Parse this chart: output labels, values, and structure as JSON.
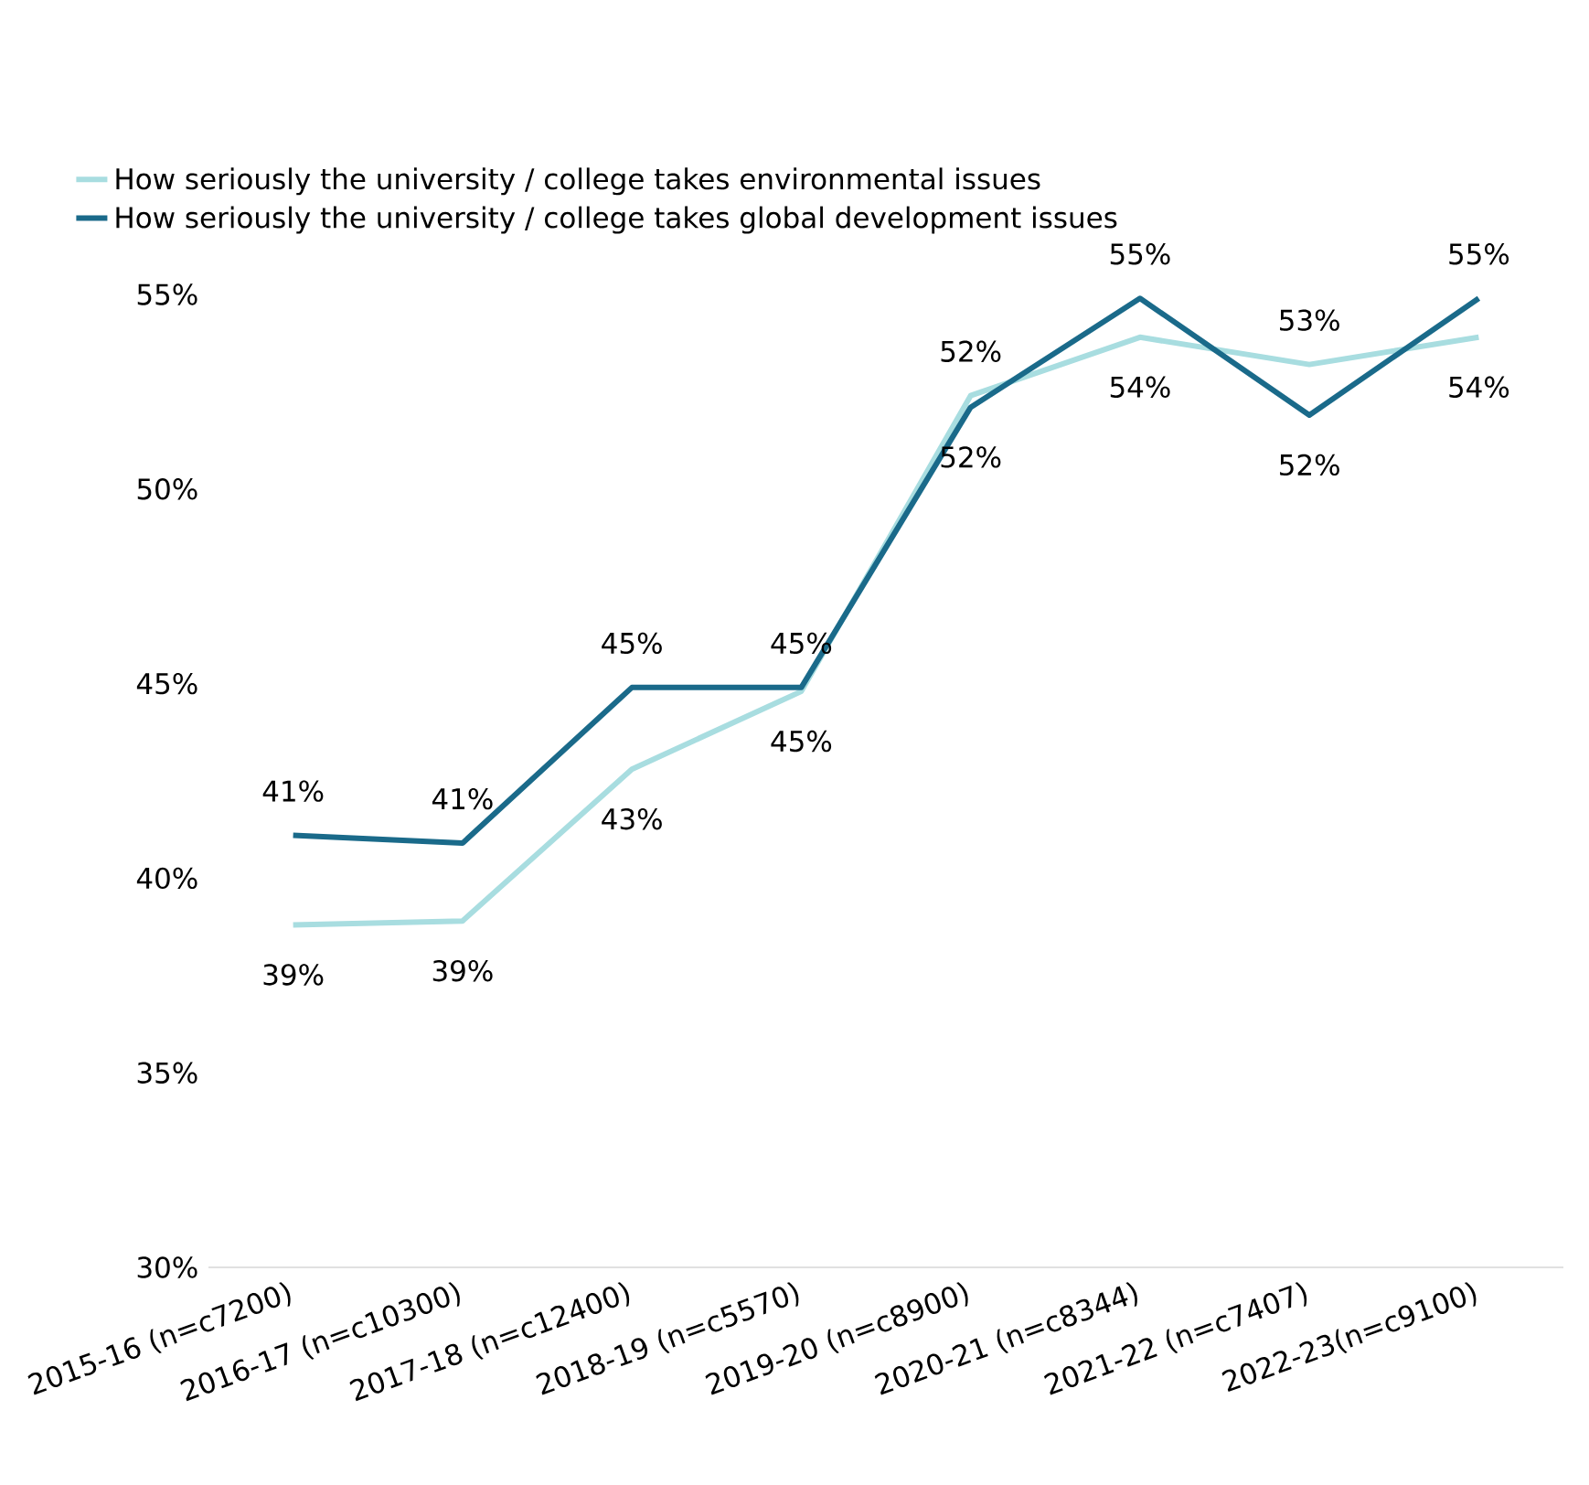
{
  "chart_data": {
    "type": "line",
    "categories": [
      "2015-16 (n=c7200)",
      "2016-17 (n=c10300)",
      "2017-18 (n=c12400)",
      "2018-19 (n=c5570)",
      "2019-20 (n=c8900)",
      "2020-21 (n=c8344)",
      "2021-22 (n=c7407)",
      "2022-23(n=c9100)"
    ],
    "series": [
      {
        "name": "How seriously the university / college takes environmental issues",
        "color": "#a8dde0",
        "values": [
          38.8,
          38.9,
          42.8,
          44.8,
          52.4,
          53.9,
          53.2,
          53.9
        ],
        "value_labels": [
          "39%",
          "39%",
          "43%",
          "45%",
          "52%",
          "54%",
          "53%",
          "54%"
        ]
      },
      {
        "name": "How seriously the university / college takes global development issues",
        "color": "#1a6a8a",
        "values": [
          41.1,
          40.9,
          44.9,
          44.9,
          52.1,
          54.9,
          51.9,
          54.9
        ],
        "value_labels": [
          "41%",
          "41%",
          "45%",
          "45%",
          "52%",
          "55%",
          "52%",
          "55%"
        ]
      }
    ],
    "ylim": [
      30,
      55
    ],
    "yticks": [
      {
        "value": 30,
        "label": "30%"
      },
      {
        "value": 35,
        "label": "35%"
      },
      {
        "value": 40,
        "label": "40%"
      },
      {
        "value": 45,
        "label": "45%"
      },
      {
        "value": 50,
        "label": "50%"
      },
      {
        "value": 55,
        "label": "55%"
      }
    ],
    "legend": "top left",
    "grid": false,
    "marker": "none",
    "line_style": "solid"
  }
}
